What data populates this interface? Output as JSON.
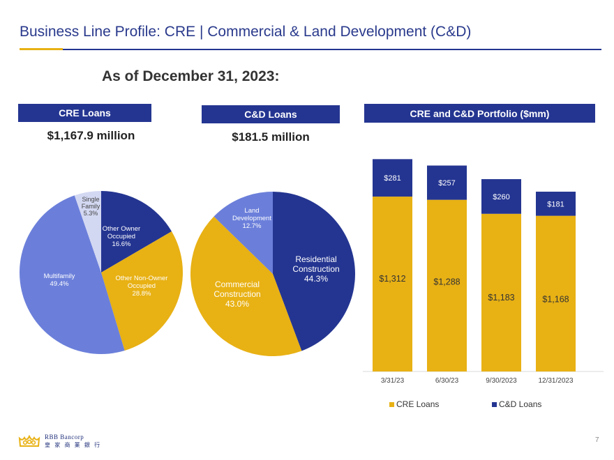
{
  "slide": {
    "title": "Business Line Profile:  CRE | Commercial & Land Development (C&D)",
    "as_of": "As of December 31, 2023:",
    "page_number": "7"
  },
  "colors": {
    "navy": "#243591",
    "gold": "#e8b114",
    "blue": "#6b7fda",
    "light_lavender": "#d3d8f2"
  },
  "cre_panel": {
    "header": "CRE Loans",
    "amount": "$1,167.9 million"
  },
  "cd_panel": {
    "header": "C&D Loans",
    "amount": "$181.5 million"
  },
  "bar_panel": {
    "header": "CRE and C&D Portfolio ($mm)"
  },
  "footer": {
    "company": "RBB Bancorp",
    "chinese_name": "皇 家 商 業 銀 行",
    "logo_icon": "crown-icon"
  },
  "chart_data": [
    {
      "type": "pie",
      "title": "CRE Loans",
      "slices": [
        {
          "label_lines": [
            "Other Owner",
            "Occupied",
            "16.6%"
          ],
          "value": 16.6,
          "color": "#243591"
        },
        {
          "label_lines": [
            "Other Non-Owner",
            "Occupied",
            "28.8%"
          ],
          "value": 28.8,
          "color": "#e8b114"
        },
        {
          "label_lines": [
            "Multifamily",
            "49.4%"
          ],
          "value": 49.4,
          "color": "#6b7fda"
        },
        {
          "label_lines": [
            "Single",
            "Family",
            "5.3%"
          ],
          "value": 5.3,
          "color": "#d3d8f2"
        }
      ]
    },
    {
      "type": "pie",
      "title": "C&D Loans",
      "slices": [
        {
          "label_lines": [
            "Residential",
            "Construction",
            "44.3%"
          ],
          "value": 44.3,
          "color": "#243591"
        },
        {
          "label_lines": [
            "Commercial",
            "Construction",
            "43.0%"
          ],
          "value": 43.0,
          "color": "#e8b114"
        },
        {
          "label_lines": [
            "Land",
            "Development",
            "12.7%"
          ],
          "value": 12.7,
          "color": "#6b7fda"
        }
      ]
    },
    {
      "type": "bar",
      "stacked": true,
      "title": "CRE and C&D Portfolio ($mm)",
      "categories": [
        "3/31/23",
        "6/30/23",
        "9/30/2023",
        "12/31/2023"
      ],
      "series": [
        {
          "name": "CRE Loans",
          "values": [
            1312,
            1288,
            1183,
            1168
          ],
          "labels": [
            "$1,312",
            "$1,288",
            "$1,183",
            "$1,168"
          ],
          "color": "#e8b114"
        },
        {
          "name": "C&D Loans",
          "values": [
            281,
            257,
            260,
            181
          ],
          "labels": [
            "$281",
            "$257",
            "$260",
            "$181"
          ],
          "color": "#243591"
        }
      ],
      "legend_position": "bottom"
    }
  ]
}
